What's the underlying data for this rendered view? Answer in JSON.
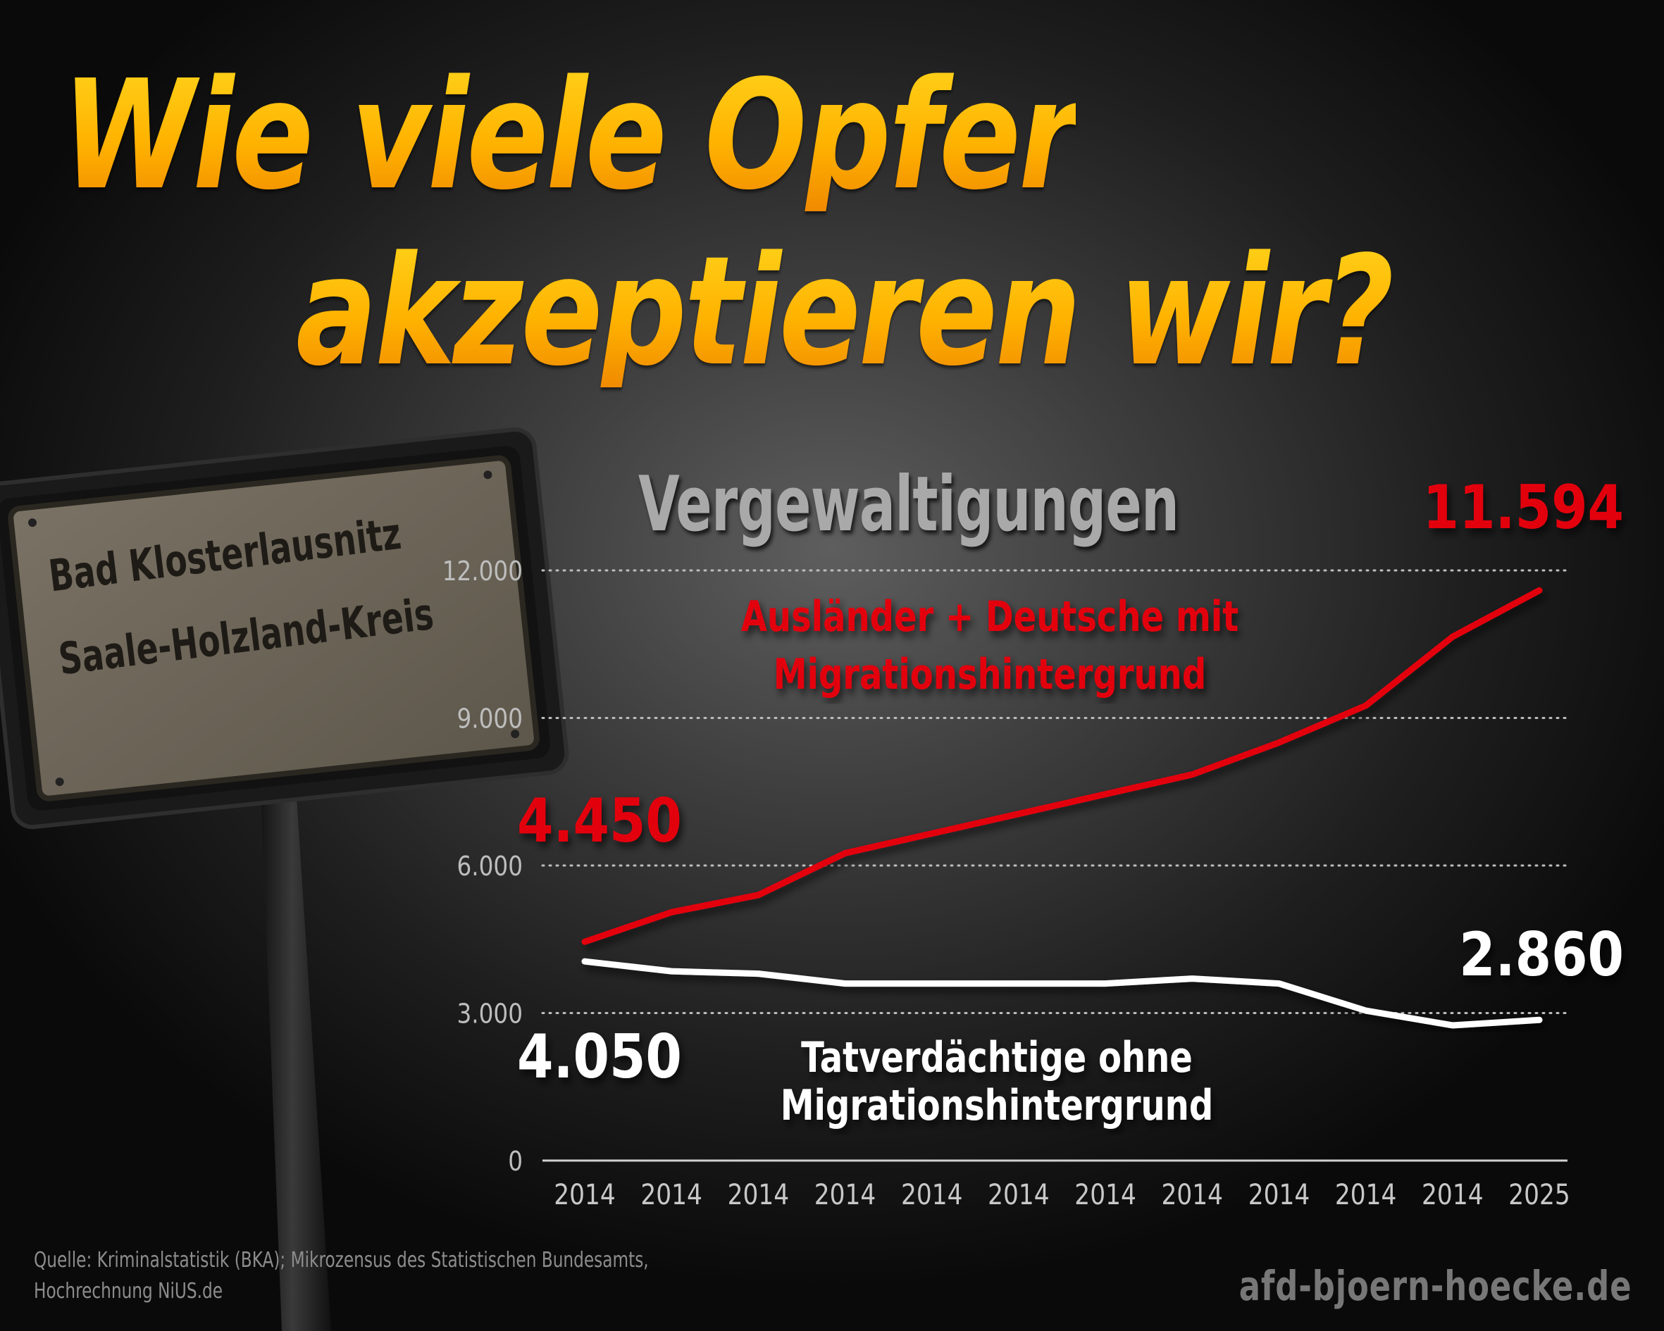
{
  "headline": {
    "line1": "Wie viele Opfer",
    "line2": "akzeptieren wir?",
    "color_top": "#ffd21a",
    "color_bottom": "#f08a00"
  },
  "sign": {
    "line1": "Bad Klosterlausnitz",
    "line2": "Saale-Holzland-Kreis"
  },
  "chart_data": {
    "type": "line",
    "title": "Vergewaltigungen",
    "categories": [
      "2014",
      "2014",
      "2014",
      "2014",
      "2014",
      "2014",
      "2014",
      "2014",
      "2014",
      "2014",
      "2014",
      "2025"
    ],
    "ylim": [
      0,
      12000
    ],
    "yticks": [
      "0",
      "3.000",
      "6.000",
      "9.000",
      "12.000"
    ],
    "ytick_values": [
      0,
      3000,
      6000,
      9000,
      12000
    ],
    "grid": true,
    "series": [
      {
        "name": "Ausländer + Deutsche mit Migrationshintergrund",
        "name_line1": "Ausländer + Deutsche mit",
        "name_line2": "Migrationshintergrund",
        "color": "#e3000f",
        "values": [
          4450,
          5050,
          5400,
          6250,
          6650,
          7050,
          7450,
          7850,
          8500,
          9250,
          10650,
          11594
        ],
        "start_label": "4.450",
        "end_label": "11.594"
      },
      {
        "name": "Tatverdächtige ohne Migrationshintergrund",
        "name_line1": "Tatverdächtige ohne",
        "name_line2": "Migrationshintergrund",
        "color": "#ffffff",
        "values": [
          4050,
          3850,
          3800,
          3600,
          3600,
          3600,
          3600,
          3700,
          3600,
          3050,
          2750,
          2860
        ],
        "start_label": "4.050",
        "end_label": "2.860"
      }
    ]
  },
  "footer": {
    "source_line1": "Quelle: Kriminalstatistik (BKA); Mikrozensus des Statistischen Bundesamts,",
    "source_line2": "Hochrechnung NiUS.de",
    "brand": "afd-bjoern-hoecke.de"
  }
}
